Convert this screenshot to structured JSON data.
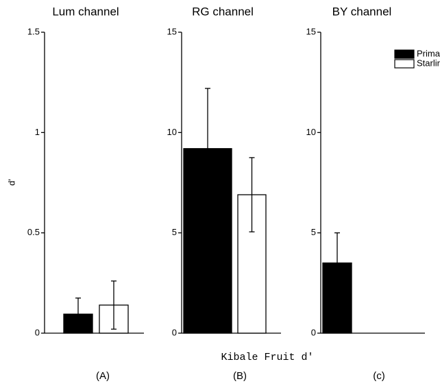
{
  "chart_data": [
    {
      "type": "bar",
      "title": "Lum channel",
      "ylabel": "d'",
      "label": "(A)",
      "ylim": [
        0,
        1.5
      ],
      "yticks": [
        0,
        0.5,
        1,
        1.5
      ],
      "series": [
        {
          "color": "#000000",
          "values": [
            0.095
          ],
          "errors": [
            0.08
          ]
        },
        {
          "color": "#ffffff",
          "values": [
            0.14
          ],
          "errors": [
            0.12
          ]
        }
      ]
    },
    {
      "type": "bar",
      "title": "RG channel",
      "xlabel": "Kibale Fruit d'",
      "label": "(B)",
      "ylim": [
        0,
        15
      ],
      "yticks": [
        0,
        5,
        10,
        15
      ],
      "series": [
        {
          "color": "#000000",
          "values": [
            9.2
          ],
          "errors": [
            3.0
          ]
        },
        {
          "color": "#ffffff",
          "values": [
            6.9
          ],
          "errors": [
            1.85
          ]
        }
      ]
    },
    {
      "type": "bar",
      "title": "BY channel",
      "label": "(c)",
      "legend": "upper right",
      "ylim": [
        0,
        15
      ],
      "yticks": [
        0,
        5,
        10,
        15
      ],
      "series": [
        {
          "name": "Primate",
          "color": "#000000",
          "values": [
            3.5
          ],
          "errors": [
            1.5
          ]
        },
        {
          "name": "Starling",
          "color": "#ffffff",
          "values": [
            null
          ],
          "errors": [
            null
          ]
        }
      ]
    }
  ]
}
